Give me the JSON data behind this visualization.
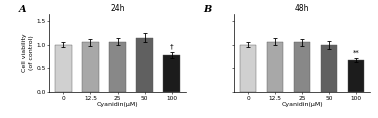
{
  "panel_A": {
    "title": "24h",
    "label": "A",
    "categories": [
      "0",
      "12.5",
      "25",
      "50",
      "100"
    ],
    "values": [
      1.0,
      1.055,
      1.07,
      1.15,
      0.78
    ],
    "errors": [
      0.055,
      0.07,
      0.075,
      0.1,
      0.065
    ],
    "bar_colors": [
      "#d0d0d0",
      "#a8a8a8",
      "#888888",
      "#606060",
      "#1c1c1c"
    ],
    "sig_marker": "†",
    "sig_bar_index": 4
  },
  "panel_B": {
    "title": "48h",
    "label": "B",
    "categories": [
      "0",
      "12.5",
      "25",
      "50",
      "100"
    ],
    "values": [
      1.0,
      1.07,
      1.05,
      1.0,
      0.68
    ],
    "errors": [
      0.05,
      0.065,
      0.065,
      0.09,
      0.045
    ],
    "bar_colors": [
      "#d0d0d0",
      "#a8a8a8",
      "#888888",
      "#606060",
      "#1c1c1c"
    ],
    "sig_marker": "**",
    "sig_bar_index": 4
  },
  "ylabel": "Cell viability\n(of control)",
  "xlabel": "Cyanidin(μM)",
  "ylim": [
    0.0,
    1.65
  ],
  "yticks": [
    0.0,
    0.5,
    1.0,
    1.5
  ],
  "yticklabels": [
    "0.0",
    "0.5",
    "1.0",
    "1.5"
  ],
  "background_color": "#ffffff",
  "bar_width": 0.6,
  "ylabel_fontsize": 4.5,
  "xlabel_fontsize": 4.5,
  "title_fontsize": 5.5,
  "tick_fontsize": 4.2,
  "panel_label_fontsize": 7,
  "sig_fontsize": 5
}
